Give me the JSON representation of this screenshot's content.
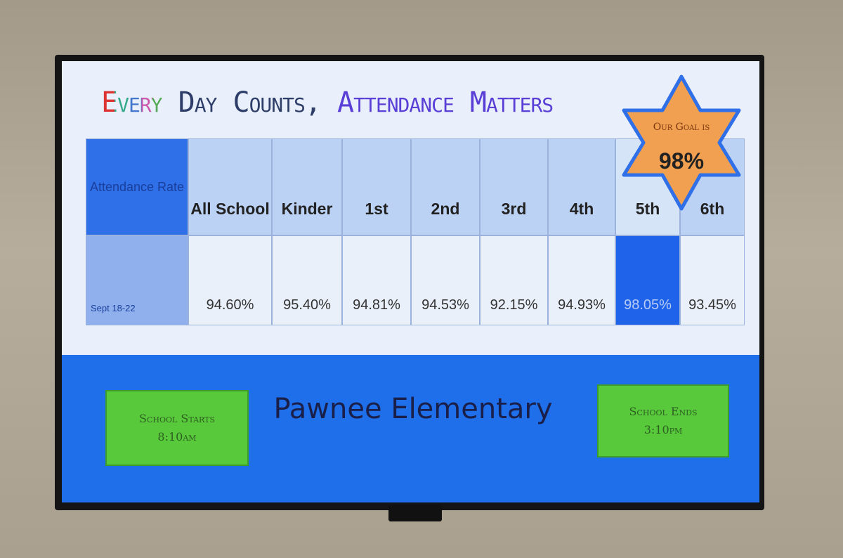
{
  "header": {
    "title_parts": [
      "Every",
      "Day Counts,",
      "Attendance Matters"
    ]
  },
  "goal": {
    "label": "Our Goal is",
    "value": "98%"
  },
  "table": {
    "columns": [
      "Attendance Rate",
      "All School",
      "Kinder",
      "1st",
      "2nd",
      "3rd",
      "4th",
      "5th",
      "6th"
    ],
    "rows": [
      [
        "Sept 18-22",
        "94.60%",
        "95.40%",
        "94.81%",
        "94.53%",
        "92.15%",
        "94.93%",
        "98.05%",
        "93.45%"
      ]
    ]
  },
  "footer": {
    "school": "Pawnee Elementary",
    "start": [
      "School Starts",
      "8:10am"
    ],
    "end": [
      "School Ends",
      "3:10pm"
    ]
  }
}
